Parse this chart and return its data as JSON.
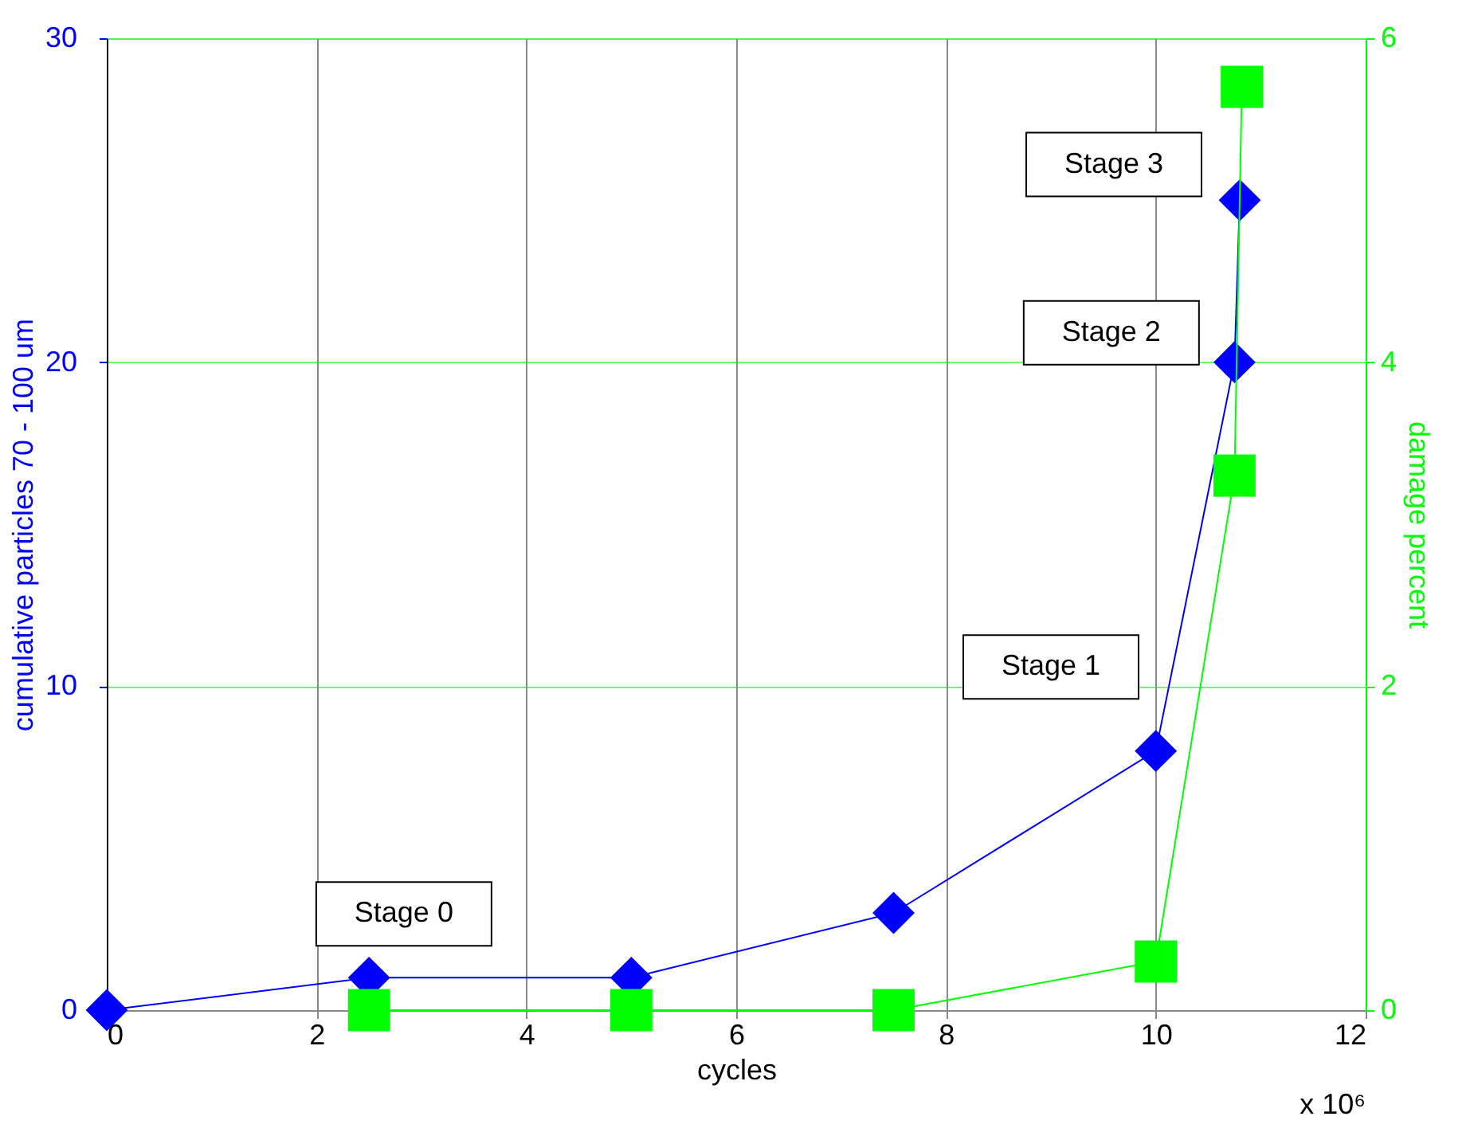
{
  "chart_data": {
    "type": "line",
    "xlabel": "cycles",
    "ylabel": "cumulative particles 70 - 100 um",
    "y2label": "damage percent",
    "series": [
      {
        "color": "#0000ff",
        "marker": "diamond",
        "x": [
          0,
          2.5,
          5,
          7.5,
          10,
          10.75,
          10.8
        ],
        "values": [
          0,
          1,
          1,
          3,
          8,
          20,
          25
        ]
      },
      {
        "color": "#00ff00",
        "marker": "square",
        "axis": "y2",
        "x": [
          2.5,
          5,
          7.5,
          10,
          10.75,
          10.82
        ],
        "values": [
          0,
          0,
          0,
          0.3,
          3.3,
          5.7
        ]
      }
    ],
    "xlim": [
      0,
      12
    ],
    "xticks": [
      0,
      2,
      4,
      6,
      8,
      10,
      12
    ],
    "ylim": [
      0,
      30
    ],
    "yticks": [
      0,
      10,
      20,
      30
    ],
    "y2lim": [
      0,
      6
    ],
    "y2ticks": [
      0,
      2,
      4,
      6
    ],
    "grid": true,
    "annotations": [
      "Stage 0",
      "Stage 1",
      "Stage 2",
      "Stage 3",
      "x 10⁶"
    ]
  }
}
